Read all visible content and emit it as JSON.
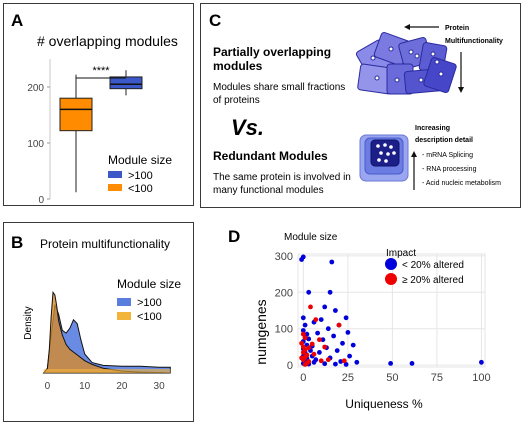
{
  "panel_a": {
    "letter": "A",
    "title": "# overlapping modules",
    "significance": "****",
    "legend_title": "Module size",
    "legend": [
      {
        "label": ">100",
        "color": "#3a58c8"
      },
      {
        "label": "<100",
        "color": "#ff8c00"
      }
    ]
  },
  "panel_b": {
    "letter": "B",
    "title": "Protein multifunctionality",
    "ylabel": "Density",
    "legend_title": "Module size",
    "legend": [
      {
        "label": ">100",
        "color": "#5a7ee0"
      },
      {
        "label": "<100",
        "color": "#f3b43a"
      }
    ]
  },
  "panel_c": {
    "letter": "C",
    "heading1": "Partially overlapping modules",
    "body1": "Modules share small fractions of proteins",
    "vs": "Vs.",
    "heading2": "Redundant Modules",
    "body2": "The same protein is involved in many functional modules",
    "arrow_label_line1": "Protein",
    "arrow_label_line2": "Multifunctionality",
    "detail_line1": "Increasing",
    "detail_line2": "description detail",
    "detail_items": [
      "- mRNA Splicing",
      "- RNA processing",
      "- Acid nucleic metabolism"
    ]
  },
  "panel_d": {
    "letter": "D",
    "module_size_label": "Module size",
    "impact_title": "Impact",
    "legend": [
      {
        "label": "< 20% altered",
        "color": "#0000dd"
      },
      {
        "label": "≥ 20% altered",
        "color": "#ee0000"
      }
    ]
  },
  "chart_data": [
    {
      "type": "box",
      "title": "# overlapping modules",
      "ylim": [
        0,
        250
      ],
      "yticks": [
        0,
        100,
        200
      ],
      "series": [
        {
          "name": "<100",
          "q1": 122,
          "median": 160,
          "q3": 180,
          "whisker_low": 12,
          "whisker_high": 222
        },
        {
          "name": ">100",
          "q1": 197,
          "median": 205,
          "q3": 218,
          "whisker_low": 185,
          "whisker_high": 230
        }
      ]
    },
    {
      "type": "area",
      "title": "Protein multifunctionality",
      "ylabel": "Density",
      "xlim": [
        -2,
        34
      ],
      "xticks": [
        0,
        10,
        20,
        30
      ],
      "series": [
        {
          "name": "<100",
          "x": [
            -1,
            0,
            0.5,
            1,
            1.5,
            2,
            2.5,
            3,
            4,
            5,
            6,
            7,
            8,
            10,
            12,
            15,
            20,
            25,
            30,
            33
          ],
          "values": [
            0.0,
            0.05,
            0.25,
            0.6,
            0.85,
            0.82,
            0.7,
            0.55,
            0.4,
            0.3,
            0.25,
            0.22,
            0.19,
            0.13,
            0.09,
            0.05,
            0.02,
            0.01,
            0.005,
            0.0
          ]
        },
        {
          "name": ">100",
          "x": [
            -1,
            0,
            1,
            2,
            3,
            4,
            5,
            6,
            7,
            8,
            9,
            10,
            12,
            15,
            20,
            25,
            30,
            33
          ],
          "values": [
            0.0,
            0.05,
            0.4,
            0.72,
            0.62,
            0.45,
            0.42,
            0.47,
            0.56,
            0.52,
            0.35,
            0.2,
            0.11,
            0.08,
            0.07,
            0.07,
            0.06,
            0.06
          ]
        }
      ]
    },
    {
      "type": "scatter",
      "xlabel": "Uniqueness %",
      "ylabel": "numgenes",
      "xlim": [
        -3,
        102
      ],
      "ylim": [
        -5,
        305
      ],
      "xticks": [
        0,
        25,
        50,
        75,
        100
      ],
      "yticks": [
        0,
        100,
        200,
        300
      ],
      "series": [
        {
          "name": "< 20% altered",
          "points": [
            [
              -1,
              290
            ],
            [
              0,
              297
            ],
            [
              16,
              283
            ],
            [
              3,
              200
            ],
            [
              15,
              200
            ],
            [
              12,
              160
            ],
            [
              18,
              150
            ],
            [
              24,
              130
            ],
            [
              10,
              125
            ],
            [
              6,
              118
            ],
            [
              20,
              110
            ],
            [
              14,
              100
            ],
            [
              25,
              90
            ],
            [
              8,
              88
            ],
            [
              17,
              80
            ],
            [
              3,
              72
            ],
            [
              11,
              70
            ],
            [
              22,
              60
            ],
            [
              28,
              55
            ],
            [
              5,
              52
            ],
            [
              13,
              48
            ],
            [
              19,
              40
            ],
            [
              9,
              35
            ],
            [
              26,
              25
            ],
            [
              15,
              20
            ],
            [
              7,
              15
            ],
            [
              21,
              10
            ],
            [
              30,
              8
            ],
            [
              0,
              130
            ],
            [
              1,
              110
            ],
            [
              0,
              95
            ],
            [
              2,
              85
            ],
            [
              1,
              75
            ],
            [
              0,
              65
            ],
            [
              2,
              55
            ],
            [
              0,
              45
            ],
            [
              1,
              35
            ],
            [
              0,
              25
            ],
            [
              2,
              18
            ],
            [
              1,
              10
            ],
            [
              0,
              5
            ],
            [
              3,
              3
            ],
            [
              4,
              40
            ],
            [
              5,
              25
            ],
            [
              6,
              8
            ],
            [
              12,
              4
            ],
            [
              18,
              3
            ],
            [
              24,
              2
            ],
            [
              49,
              5
            ],
            [
              61,
              5
            ],
            [
              100,
              8
            ]
          ]
        },
        {
          "name": "≥ 20% altered",
          "points": [
            [
              -1,
              60
            ],
            [
              0,
              50
            ],
            [
              1,
              42
            ],
            [
              0,
              35
            ],
            [
              2,
              28
            ],
            [
              1,
              22
            ],
            [
              0,
              15
            ],
            [
              3,
              10
            ],
            [
              2,
              5
            ],
            [
              1,
              2
            ],
            [
              4,
              160
            ],
            [
              7,
              125
            ],
            [
              20,
              110
            ],
            [
              9,
              70
            ],
            [
              12,
              50
            ],
            [
              6,
              30
            ],
            [
              14,
              15
            ],
            [
              23,
              12
            ],
            [
              0,
              85
            ],
            [
              1,
              75
            ],
            [
              -1,
              20
            ],
            [
              3,
              48
            ],
            [
              5,
              58
            ],
            [
              10,
              12
            ]
          ]
        }
      ]
    }
  ]
}
